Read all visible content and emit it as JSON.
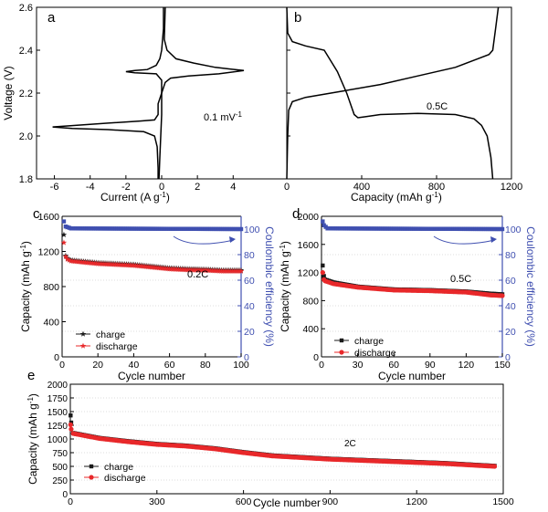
{
  "chart_data": [
    {
      "panel": "a",
      "type": "line",
      "xlabel": "Current (A g",
      "xlabel_sup": "-1",
      "xlabel_tail": ")",
      "ylabel": "Voltage (V)",
      "xlim": [
        -7,
        7
      ],
      "ylim": [
        1.8,
        2.6
      ],
      "xticks": [
        -6,
        -4,
        -2,
        0,
        2,
        4
      ],
      "yticks": [
        1.8,
        2.0,
        2.2,
        2.4,
        2.6
      ],
      "annotation": "0.1 mV",
      "annotation_sup": "-1",
      "series": [
        {
          "points": [
            [
              0.2,
              2.6
            ],
            [
              0.15,
              2.45
            ],
            [
              0.3,
              2.4
            ],
            [
              0.8,
              2.36
            ],
            [
              1.8,
              2.34
            ],
            [
              3.0,
              2.32
            ],
            [
              4.6,
              2.305
            ],
            [
              3.2,
              2.29
            ],
            [
              1.5,
              2.28
            ],
            [
              0.5,
              2.27
            ],
            [
              0.2,
              2.25
            ],
            [
              0.0,
              2.2
            ],
            [
              -0.2,
              2.15
            ],
            [
              -0.2,
              2.1
            ],
            [
              -0.4,
              2.075
            ],
            [
              -1.2,
              2.07
            ],
            [
              -3.0,
              2.06
            ],
            [
              -6.1,
              2.042
            ],
            [
              -5.0,
              2.035
            ],
            [
              -3.0,
              2.03
            ],
            [
              -1.0,
              2.02
            ],
            [
              -0.4,
              2.0
            ],
            [
              -0.25,
              1.95
            ],
            [
              -0.2,
              1.85
            ],
            [
              -0.2,
              1.8
            ]
          ]
        },
        {
          "points": [
            [
              -0.15,
              1.8
            ],
            [
              -0.1,
              1.9
            ],
            [
              -0.05,
              2.0
            ],
            [
              0.0,
              2.1
            ],
            [
              0.0,
              2.2
            ],
            [
              0.0,
              2.26
            ],
            [
              -0.3,
              2.29
            ],
            [
              -1.5,
              2.295
            ],
            [
              -2.0,
              2.3
            ],
            [
              -1.5,
              2.305
            ],
            [
              -0.8,
              2.31
            ],
            [
              -0.3,
              2.33
            ],
            [
              -0.1,
              2.36
            ],
            [
              0.0,
              2.4
            ],
            [
              0.1,
              2.5
            ],
            [
              0.1,
              2.6
            ]
          ]
        }
      ]
    },
    {
      "panel": "b",
      "type": "line",
      "xlabel": "Capacity (mAh g",
      "xlabel_sup": "-1",
      "xlabel_tail": ")",
      "xlim": [
        0,
        1200
      ],
      "ylim": [
        1.8,
        2.6
      ],
      "xticks": [
        0,
        400,
        800,
        1200
      ],
      "annotation": "0.5C",
      "series": [
        {
          "points": [
            [
              0,
              2.6
            ],
            [
              5,
              2.48
            ],
            [
              30,
              2.44
            ],
            [
              100,
              2.42
            ],
            [
              200,
              2.4
            ],
            [
              270,
              2.3
            ],
            [
              320,
              2.2
            ],
            [
              360,
              2.1
            ],
            [
              380,
              2.085
            ],
            [
              420,
              2.09
            ],
            [
              500,
              2.1
            ],
            [
              700,
              2.105
            ],
            [
              900,
              2.1
            ],
            [
              1000,
              2.08
            ],
            [
              1040,
              2.05
            ],
            [
              1070,
              2.0
            ],
            [
              1090,
              1.9
            ],
            [
              1100,
              1.8
            ]
          ]
        },
        {
          "points": [
            [
              0,
              1.8
            ],
            [
              5,
              2.0
            ],
            [
              10,
              2.12
            ],
            [
              30,
              2.16
            ],
            [
              100,
              2.18
            ],
            [
              300,
              2.21
            ],
            [
              500,
              2.24
            ],
            [
              700,
              2.28
            ],
            [
              900,
              2.32
            ],
            [
              1020,
              2.36
            ],
            [
              1080,
              2.38
            ],
            [
              1100,
              2.4
            ],
            [
              1115,
              2.5
            ],
            [
              1130,
              2.6
            ]
          ]
        }
      ]
    },
    {
      "panel": "c",
      "type": "scatter",
      "xlabel": "Cycle number",
      "ylabel": "Capacity (mAh g",
      "ylabel_sup": "-1",
      "ylabel_tail": ")",
      "y2label": "Coulombic efficiency (%)",
      "xlim": [
        0,
        100
      ],
      "ylim": [
        0,
        1600
      ],
      "y2lim": [
        0,
        110
      ],
      "xticks": [
        0,
        20,
        40,
        60,
        80,
        100
      ],
      "yticks": [
        0,
        400,
        800,
        1200,
        1600
      ],
      "y2ticks": [
        0,
        20,
        40,
        60,
        80,
        100
      ],
      "annotation": "0.2C",
      "legend": [
        "charge",
        "discharge"
      ],
      "series": [
        {
          "name": "charge",
          "markers": "star",
          "color": "#1a1a1a",
          "points": [
            [
              1,
              1390
            ],
            [
              2,
              1150
            ],
            [
              3,
              1120
            ],
            [
              5,
              1100
            ],
            [
              20,
              1070
            ],
            [
              40,
              1050
            ],
            [
              50,
              1030
            ],
            [
              60,
              1010
            ],
            [
              70,
              1000
            ],
            [
              80,
              995
            ],
            [
              90,
              985
            ],
            [
              100,
              985
            ]
          ]
        },
        {
          "name": "discharge",
          "markers": "star",
          "color": "#e8282a",
          "points": [
            [
              1,
              1300
            ],
            [
              2,
              1140
            ],
            [
              3,
              1110
            ],
            [
              5,
              1090
            ],
            [
              20,
              1060
            ],
            [
              40,
              1040
            ],
            [
              50,
              1020
            ],
            [
              60,
              1000
            ],
            [
              70,
              990
            ],
            [
              80,
              985
            ],
            [
              90,
              975
            ],
            [
              100,
              975
            ]
          ]
        },
        {
          "name": "Coulombic efficiency",
          "axis": "y2",
          "color": "#3f4fb0",
          "points": [
            [
              1,
              106
            ],
            [
              2,
              102
            ],
            [
              5,
              100.5
            ],
            [
              100,
              100
            ]
          ]
        }
      ]
    },
    {
      "panel": "d",
      "type": "scatter",
      "xlabel": "Cycle number",
      "ylabel": "Capacity (mAh g",
      "ylabel_sup": "-1",
      "ylabel_tail": ")",
      "y2label": "Coulombic efficiency (%)",
      "xlim": [
        0,
        150
      ],
      "ylim": [
        0,
        2000
      ],
      "y2lim": [
        0,
        110
      ],
      "xticks": [
        0,
        30,
        60,
        90,
        120,
        150
      ],
      "yticks": [
        0,
        400,
        800,
        1200,
        1600,
        2000
      ],
      "y2ticks": [
        0,
        20,
        40,
        60,
        80,
        100
      ],
      "annotation": "0.5C",
      "legend": [
        "charge",
        "discharge"
      ],
      "series": [
        {
          "name": "charge",
          "markers": "square",
          "color": "#1a1a1a",
          "points": [
            [
              1,
              1300
            ],
            [
              2,
              1150
            ],
            [
              3,
              1100
            ],
            [
              10,
              1060
            ],
            [
              30,
              1000
            ],
            [
              60,
              960
            ],
            [
              90,
              950
            ],
            [
              120,
              930
            ],
            [
              140,
              900
            ],
            [
              150,
              890
            ]
          ]
        },
        {
          "name": "discharge",
          "markers": "circle",
          "color": "#e8282a",
          "points": [
            [
              1,
              1200
            ],
            [
              2,
              1100
            ],
            [
              3,
              1080
            ],
            [
              10,
              1040
            ],
            [
              30,
              990
            ],
            [
              60,
              950
            ],
            [
              90,
              940
            ],
            [
              120,
              920
            ],
            [
              140,
              880
            ],
            [
              150,
              870
            ]
          ]
        },
        {
          "name": "Coulombic efficiency",
          "axis": "y2",
          "color": "#3f4fb0",
          "points": [
            [
              1,
              106
            ],
            [
              2,
              103
            ],
            [
              5,
              100.5
            ],
            [
              150,
              100
            ]
          ]
        }
      ]
    },
    {
      "panel": "e",
      "type": "scatter",
      "xlabel": "Cycle number",
      "ylabel": "Capacity (mAh g",
      "ylabel_sup": "-1",
      "ylabel_tail": ")",
      "xlim": [
        0,
        1500
      ],
      "ylim": [
        0,
        2000
      ],
      "xticks": [
        0,
        300,
        600,
        900,
        1200,
        1500
      ],
      "yticks": [
        0,
        250,
        500,
        750,
        1000,
        1250,
        1500,
        1750,
        2000
      ],
      "annotation": "2C",
      "legend": [
        "charge",
        "discharge"
      ],
      "series": [
        {
          "name": "charge",
          "markers": "square",
          "color": "#1a1a1a",
          "points": [
            [
              1,
              1430
            ],
            [
              3,
              1300
            ],
            [
              10,
              1110
            ],
            [
              100,
              1020
            ],
            [
              200,
              960
            ],
            [
              300,
              910
            ],
            [
              400,
              880
            ],
            [
              500,
              830
            ],
            [
              600,
              760
            ],
            [
              700,
              700
            ],
            [
              800,
              670
            ],
            [
              900,
              640
            ],
            [
              1000,
              620
            ],
            [
              1100,
              600
            ],
            [
              1200,
              580
            ],
            [
              1300,
              560
            ],
            [
              1400,
              530
            ],
            [
              1470,
              510
            ]
          ]
        },
        {
          "name": "discharge",
          "markers": "circle",
          "color": "#e8282a",
          "points": [
            [
              1,
              1260
            ],
            [
              3,
              1180
            ],
            [
              10,
              1100
            ],
            [
              100,
              1010
            ],
            [
              200,
              950
            ],
            [
              300,
              900
            ],
            [
              400,
              870
            ],
            [
              500,
              820
            ],
            [
              600,
              750
            ],
            [
              700,
              690
            ],
            [
              800,
              660
            ],
            [
              900,
              630
            ],
            [
              1000,
              610
            ],
            [
              1100,
              590
            ],
            [
              1200,
              570
            ],
            [
              1300,
              550
            ],
            [
              1400,
              520
            ],
            [
              1470,
              500
            ]
          ]
        }
      ]
    }
  ]
}
